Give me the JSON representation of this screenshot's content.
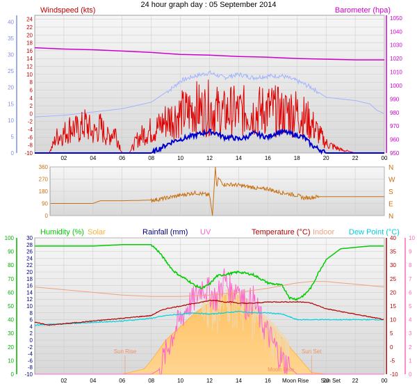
{
  "title": "24 hour graph day : 05 September 2014",
  "colors": {
    "windspeed": "#e00000",
    "gust": "#e00000",
    "avg_wind": "#0000cc",
    "barometer": "#cc00cc",
    "temp_sea": "#a0b4ff",
    "direction": "#c87010",
    "humidity": "#00cc00",
    "solar": "#ffb030",
    "rainfall": "#000080",
    "uv": "#ff66cc",
    "temperature": "#b00000",
    "indoor": "#f0a080",
    "dewpoint": "#00d0e0",
    "left_axis": "#8090e0",
    "green_axis": "#00b000",
    "pink_axis": "#ff66bb"
  },
  "chart_data": [
    {
      "type": "line",
      "panel": "wind",
      "x_ticks": [
        "02",
        "04",
        "06",
        "08",
        "10",
        "12",
        "14",
        "16",
        "18",
        "20",
        "22",
        "00"
      ],
      "y_left_label": "Windspeed (kts)",
      "y_left_ticks": [
        "24",
        "22",
        "20",
        "18",
        "16",
        "14",
        "12",
        "10",
        "8",
        "6",
        "4",
        "2",
        "0",
        "-2",
        "-4",
        "-6",
        "-8",
        "-10"
      ],
      "y_outer_ticks": [
        "40",
        "35",
        "30",
        "25",
        "20",
        "15",
        "10",
        "5",
        "0"
      ],
      "y_right_label": "Barometer (hpa)",
      "y_right_ticks": [
        "1050",
        "1040",
        "1030",
        "1020",
        "1010",
        "1000",
        "990",
        "980",
        "970",
        "960",
        "950"
      ],
      "ylim_left": [
        -10,
        25
      ],
      "ylim_right": [
        950,
        1052
      ],
      "ylim_outer": [
        0,
        42
      ],
      "series": [
        {
          "key": "barometer",
          "x": [
            0,
            2,
            4,
            6,
            8,
            10,
            12,
            14,
            16,
            18,
            20,
            22,
            24
          ],
          "values": [
            1028,
            1027,
            1026.5,
            1025.5,
            1024.5,
            1023,
            1022.5,
            1021.5,
            1021,
            1020,
            1019.5,
            1019,
            1019
          ],
          "axis": "right"
        },
        {
          "key": "temp_sea",
          "x": [
            0,
            2,
            3,
            4,
            5,
            6,
            7,
            8,
            8.5,
            9,
            9.5,
            10,
            11,
            12,
            13,
            14,
            15,
            16,
            17,
            18,
            18.5,
            19,
            19.5,
            20,
            21,
            22,
            23,
            23.5,
            24
          ],
          "values": [
            11,
            11.5,
            12,
            12.5,
            13,
            13.5,
            14.5,
            15.5,
            17,
            18.5,
            20,
            22,
            23.5,
            24.5,
            23,
            24,
            23,
            23.5,
            23.5,
            22,
            21,
            20,
            18.5,
            17,
            16.5,
            16,
            15,
            13,
            12
          ],
          "axis": "outer"
        },
        {
          "key": "gust",
          "x": [
            0,
            1,
            1.5,
            2,
            2.5,
            3,
            3.5,
            4,
            4.5,
            5,
            5.5,
            6,
            6.5,
            7,
            7.5,
            8,
            8.5,
            9,
            9.5,
            10,
            10.5,
            11,
            11.5,
            12,
            12.5,
            13,
            13.5,
            14,
            14.5,
            15,
            15.5,
            16,
            16.5,
            17,
            17.5,
            18,
            18.5,
            19,
            19.5,
            20,
            21,
            22,
            23,
            24
          ],
          "values": [
            -10,
            -10,
            -5,
            -4,
            -2,
            -3,
            -1,
            -4,
            -2,
            -5,
            -3,
            -10,
            -10,
            -6,
            -4,
            -3,
            -2,
            0,
            1,
            2,
            2.5,
            4,
            3,
            4,
            3,
            2,
            3,
            2.5,
            3,
            2.5,
            3,
            3.5,
            3,
            2,
            3,
            2.5,
            1,
            -1,
            -4,
            -7,
            -9,
            -10,
            -10,
            -10
          ],
          "axis": "left"
        },
        {
          "key": "avg_wind",
          "x": [
            0,
            2,
            4,
            6,
            8,
            8.5,
            9,
            9.5,
            10,
            10.5,
            11,
            11.5,
            12,
            12.5,
            13,
            13.5,
            14,
            14.5,
            15,
            15.5,
            16,
            16.5,
            17,
            17.5,
            18,
            18.5,
            19,
            19.5,
            20,
            22,
            24
          ],
          "values": [
            -10,
            -10,
            -10,
            -10,
            -10,
            -9,
            -8,
            -7,
            -6.5,
            -6,
            -5.5,
            -5,
            -4.5,
            -5,
            -6,
            -6,
            -6.5,
            -6,
            -5,
            -5.5,
            -6,
            -5,
            -4.5,
            -5,
            -5.5,
            -6,
            -8,
            -9,
            -10,
            -10,
            -10
          ],
          "axis": "left"
        }
      ]
    },
    {
      "type": "line",
      "panel": "direction",
      "x_ticks": [
        "02",
        "04",
        "06",
        "08",
        "10",
        "12",
        "14",
        "16",
        "18",
        "20",
        "22",
        "00"
      ],
      "y_ticks": [
        "360",
        "270",
        "180",
        "90",
        "0"
      ],
      "y_right_ticks": [
        "N",
        "W",
        "S",
        "E",
        "N"
      ],
      "ylim": [
        0,
        360
      ],
      "series": [
        {
          "key": "direction",
          "x": [
            0,
            2,
            4,
            4.5,
            5,
            6,
            7,
            8,
            8.5,
            9,
            9.5,
            10,
            10.5,
            11,
            11.5,
            12,
            12.2,
            12.4,
            12.5,
            12.6,
            12.8,
            13,
            13.5,
            14,
            14.5,
            15,
            15.5,
            16,
            16.5,
            17,
            17.5,
            18,
            18.5,
            19,
            19.5,
            20,
            21,
            22,
            23,
            24
          ],
          "values": [
            90,
            90,
            90,
            110,
            110,
            110,
            112,
            115,
            120,
            130,
            140,
            150,
            160,
            170,
            160,
            150,
            0,
            360,
            200,
            280,
            250,
            230,
            230,
            225,
            215,
            210,
            195,
            200,
            180,
            170,
            160,
            150,
            130,
            135,
            140,
            140,
            140,
            140,
            140,
            140
          ]
        }
      ]
    },
    {
      "type": "area",
      "panel": "environment",
      "x_ticks": [
        "02",
        "04",
        "06",
        "08",
        "10",
        "12",
        "14",
        "16",
        "18",
        "20",
        "22",
        "00"
      ],
      "y_humidity_ticks": [
        "100",
        "90",
        "80",
        "70",
        "60",
        "50",
        "40",
        "30",
        "20",
        "10",
        "0"
      ],
      "y_left_ticks": [
        "30",
        "28",
        "26",
        "24",
        "22",
        "20",
        "18",
        "16",
        "14",
        "12",
        "10",
        "8",
        "6",
        "4",
        "2",
        "0",
        "-2",
        "-4",
        "-6",
        "-8",
        "-10"
      ],
      "y_right_ticks": [
        "40",
        "35",
        "30",
        "25",
        "20",
        "15",
        "10",
        "5",
        "0",
        "-5",
        "-10"
      ],
      "y_uv_ticks": [
        "10",
        "9",
        "8",
        "7",
        "6",
        "5",
        "4",
        "3",
        "2",
        "1",
        "0"
      ],
      "ylim_humidity": [
        0,
        100
      ],
      "ylim_left": [
        -10,
        30
      ],
      "ylim_right": [
        -10,
        40
      ],
      "ylim_uv": [
        0,
        10
      ],
      "legend": [
        {
          "key": "humidity",
          "label": "Humidity (%)"
        },
        {
          "key": "solar",
          "label": "Solar"
        },
        {
          "key": "rainfall",
          "label": "Rainfall (mm)"
        },
        {
          "key": "uv",
          "label": "UV"
        },
        {
          "key": "temperature",
          "label": "Temperature (°C)"
        },
        {
          "key": "indoor",
          "label": "Indoor"
        },
        {
          "key": "dewpoint",
          "label": "Dew Point (°C)"
        }
      ],
      "annotations": [
        {
          "label": "Sun Rise",
          "x": 6.2
        },
        {
          "label": "Sun Set",
          "x": 19.0
        },
        {
          "label": "Moon Rise",
          "x": 16.9
        },
        {
          "label": "Moon Rise",
          "x": 17.9
        },
        {
          "label": "Sun Set",
          "x": 18.5
        }
      ],
      "series": [
        {
          "key": "solar",
          "x": [
            0,
            6,
            7,
            7.5,
            8,
            8.5,
            9,
            9.5,
            10,
            10.5,
            11,
            11.5,
            12,
            12.5,
            13,
            13.5,
            14,
            14.5,
            15,
            15.5,
            16,
            16.5,
            17,
            17.5,
            18,
            18.5,
            19,
            20,
            24
          ],
          "values": [
            -10,
            -10,
            -9,
            -8.5,
            -6,
            -3,
            0,
            2,
            4,
            6,
            8,
            9.5,
            11,
            12,
            13,
            14,
            13,
            11,
            9,
            7,
            5,
            3,
            0.5,
            -2,
            -4.5,
            -7,
            -9.5,
            -10,
            -10
          ],
          "axis": "left"
        },
        {
          "key": "humidity",
          "x": [
            0,
            2,
            4,
            6,
            7,
            8,
            8.5,
            9,
            9.5,
            10,
            10.5,
            11,
            11.5,
            12,
            12.5,
            13,
            13.5,
            14,
            14.5,
            15,
            15.5,
            16,
            16.5,
            17,
            17.5,
            18,
            18.5,
            19,
            19.5,
            20,
            21,
            22,
            23,
            24
          ],
          "values": [
            94,
            94,
            94,
            95,
            95,
            95,
            90,
            83,
            76,
            72,
            69,
            65,
            63,
            66,
            72,
            73,
            74,
            75,
            74,
            73,
            70,
            67,
            66,
            65,
            56,
            55,
            58,
            64,
            75,
            84,
            92,
            93,
            94,
            94
          ]
        },
        {
          "key": "indoor",
          "x": [
            0,
            2,
            4,
            6,
            8,
            10,
            12,
            14,
            16,
            17,
            18,
            19,
            20,
            21,
            22,
            23,
            24
          ],
          "values": [
            22,
            21,
            20,
            19,
            18.5,
            18.5,
            19,
            20,
            21.5,
            22.5,
            23.5,
            24,
            24,
            23.5,
            23,
            22.5,
            22
          ],
          "axis": "right"
        },
        {
          "key": "temperature",
          "x": [
            0,
            1,
            2,
            3,
            4,
            5,
            6,
            7,
            8,
            8.5,
            9,
            9.5,
            10,
            10.5,
            11,
            11.5,
            12,
            12.5,
            13,
            13.5,
            14,
            15,
            16,
            17,
            18,
            18.5,
            19,
            19.5,
            20,
            21,
            22,
            23,
            24
          ],
          "values": [
            9,
            8,
            8.5,
            9,
            9.5,
            10,
            10.5,
            11,
            11.5,
            13,
            14,
            14.5,
            15,
            15.5,
            16,
            16.5,
            17,
            17,
            16.5,
            16.5,
            16,
            16,
            16.5,
            16.5,
            16.5,
            16.5,
            16,
            15,
            14,
            13,
            12,
            11,
            10
          ],
          "axis": "right"
        },
        {
          "key": "dewpoint",
          "x": [
            0,
            2,
            4,
            6,
            7,
            8,
            8.5,
            9,
            10,
            11,
            12,
            13,
            14,
            15,
            16,
            17,
            17.5,
            18,
            18.5,
            19,
            20,
            21,
            22,
            23,
            24
          ],
          "values": [
            8,
            8.5,
            9,
            9.5,
            10,
            10.5,
            11,
            11.5,
            12,
            12.5,
            12,
            12.5,
            13,
            12.5,
            12.5,
            12,
            11,
            10,
            10,
            10,
            10,
            10,
            10,
            10,
            10
          ],
          "axis": "right"
        },
        {
          "key": "uv",
          "x": [
            0,
            8,
            8.5,
            9,
            9.5,
            10,
            10.5,
            11,
            11.5,
            12,
            12.5,
            13,
            13.5,
            14,
            14.5,
            15,
            15.5,
            16,
            16.5,
            17,
            17.5,
            18,
            24
          ],
          "values": [
            0,
            0,
            0.3,
            1.5,
            3,
            4,
            5,
            5.5,
            6.5,
            6,
            5.5,
            7,
            6,
            6.5,
            5,
            5.5,
            4,
            3,
            2,
            1,
            0.5,
            0,
            0
          ],
          "axis": "uv"
        }
      ]
    }
  ],
  "labels": {
    "windspeed": "Windspeed (kts)",
    "barometer": "Barometer (hpa)",
    "humidity": "Humidity (%)",
    "solar": "Solar",
    "rainfall": "Rainfall (mm)",
    "uv": "UV",
    "temperature": "Temperature (°C)",
    "indoor": "Indoor",
    "dewpoint": "Dew Point (°C)",
    "sunrise": "Sun Rise",
    "sunset": "Sun Set",
    "moonrise_bottom": "Moon Rise",
    "moonrise_axis": "Moon Rise",
    "sunset_axis": "Sun Set"
  }
}
